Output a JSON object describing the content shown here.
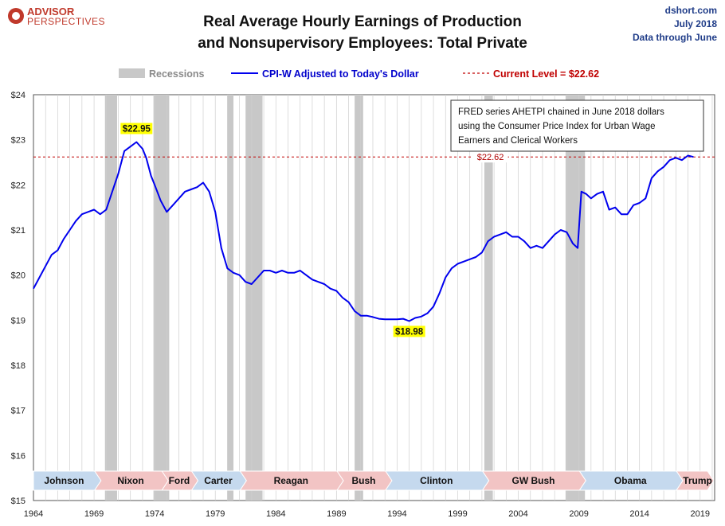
{
  "logo": {
    "line1": "ADVISOR",
    "line2": "PERSPECTIVES"
  },
  "header": {
    "title_line1": "Real Average Hourly Earnings of Production",
    "title_line2": "and Nonsupervisory Employees: Total Private",
    "brand": "dshort.com",
    "date": "July 2018",
    "data_through": "Data through June"
  },
  "legend": {
    "recessions": "Recessions",
    "series": "CPI-W Adjusted to Today's Dollar",
    "current": "Current Level = $22.62"
  },
  "note": {
    "line1": "FRED series AHETPI chained in June 2018 dollars",
    "line2": "using the Consumer Price Index for Urban Wage",
    "line3": "Earners and Clerical Workers"
  },
  "colors": {
    "series": "#0000ee",
    "recession": "#c8c8c8",
    "current_line": "#c00000",
    "annotation_bg": "#ffff00",
    "pres_republican": "#f2c4c4",
    "pres_democrat": "#c5d9ee"
  },
  "chart_data": {
    "type": "line",
    "title": "Real Average Hourly Earnings of Production and Nonsupervisory Employees: Total Private",
    "xlim": [
      1964,
      2020.2
    ],
    "ylim": [
      15,
      24
    ],
    "x_ticks": [
      "1964",
      "1969",
      "1974",
      "1979",
      "1984",
      "1989",
      "1994",
      "1999",
      "2004",
      "2009",
      "2014",
      "2019"
    ],
    "y_ticks": [
      "$15",
      "$16",
      "$17",
      "$18",
      "$19",
      "$20",
      "$21",
      "$22",
      "$23",
      "$24"
    ],
    "grid": "vertical",
    "legend_position": "top-center",
    "series": [
      {
        "name": "CPI-W Adjusted to Today's Dollar",
        "x": [
          1964.0,
          1964.5,
          1965.0,
          1965.5,
          1966.0,
          1966.5,
          1967.0,
          1967.5,
          1968.0,
          1968.5,
          1969.0,
          1969.5,
          1970.0,
          1970.5,
          1971.0,
          1971.5,
          1972.0,
          1972.5,
          1973.0,
          1973.3,
          1973.7,
          1974.0,
          1974.5,
          1975.0,
          1975.5,
          1976.0,
          1976.5,
          1977.0,
          1977.5,
          1978.0,
          1978.5,
          1979.0,
          1979.5,
          1980.0,
          1980.5,
          1981.0,
          1981.5,
          1982.0,
          1982.5,
          1983.0,
          1983.5,
          1984.0,
          1984.5,
          1985.0,
          1985.5,
          1986.0,
          1986.5,
          1987.0,
          1987.5,
          1988.0,
          1988.5,
          1989.0,
          1989.5,
          1990.0,
          1990.5,
          1991.0,
          1991.5,
          1992.0,
          1992.5,
          1993.0,
          1993.5,
          1994.0,
          1994.5,
          1995.0,
          1995.5,
          1996.0,
          1996.5,
          1997.0,
          1997.5,
          1998.0,
          1998.5,
          1999.0,
          1999.5,
          2000.0,
          2000.5,
          2001.0,
          2001.5,
          2002.0,
          2002.5,
          2003.0,
          2003.5,
          2004.0,
          2004.5,
          2005.0,
          2005.5,
          2006.0,
          2006.5,
          2007.0,
          2007.5,
          2008.0,
          2008.5,
          2008.9,
          2009.2,
          2009.6,
          2010.0,
          2010.5,
          2011.0,
          2011.5,
          2012.0,
          2012.5,
          2013.0,
          2013.5,
          2014.0,
          2014.5,
          2015.0,
          2015.5,
          2016.0,
          2016.5,
          2017.0,
          2017.5,
          2018.0,
          2018.45
        ],
        "values": [
          19.7,
          19.95,
          20.2,
          20.45,
          20.55,
          20.8,
          21.0,
          21.2,
          21.35,
          21.4,
          21.45,
          21.35,
          21.45,
          21.85,
          22.25,
          22.75,
          22.85,
          22.95,
          22.8,
          22.6,
          22.2,
          22.0,
          21.65,
          21.4,
          21.55,
          21.7,
          21.85,
          21.9,
          21.95,
          22.05,
          21.85,
          21.4,
          20.6,
          20.15,
          20.05,
          20.0,
          19.85,
          19.8,
          19.95,
          20.1,
          20.1,
          20.05,
          20.1,
          20.05,
          20.05,
          20.1,
          20.0,
          19.9,
          19.85,
          19.8,
          19.7,
          19.65,
          19.5,
          19.4,
          19.2,
          19.1,
          19.1,
          19.07,
          19.03,
          19.02,
          19.02,
          19.02,
          19.03,
          18.98,
          19.05,
          19.08,
          19.15,
          19.3,
          19.6,
          19.95,
          20.15,
          20.25,
          20.3,
          20.35,
          20.4,
          20.5,
          20.75,
          20.85,
          20.9,
          20.95,
          20.85,
          20.85,
          20.75,
          20.6,
          20.65,
          20.6,
          20.75,
          20.9,
          21.0,
          20.95,
          20.7,
          20.6,
          21.85,
          21.8,
          21.7,
          21.8,
          21.85,
          21.45,
          21.5,
          21.35,
          21.35,
          21.55,
          21.6,
          21.7,
          22.15,
          22.3,
          22.4,
          22.55,
          22.6,
          22.55,
          22.65,
          22.62
        ]
      }
    ],
    "recessions": [
      [
        1969.9,
        1970.9
      ],
      [
        1973.9,
        1975.2
      ],
      [
        1980.0,
        1980.5
      ],
      [
        1981.5,
        1982.9
      ],
      [
        1990.5,
        1991.2
      ],
      [
        2001.2,
        2001.9
      ],
      [
        2007.9,
        2009.5
      ]
    ],
    "current_level": 22.62,
    "current_label": "$22.62",
    "annotations": [
      {
        "label": "$22.95",
        "x": 1972.5,
        "y": 22.95,
        "pos": "above"
      },
      {
        "label": "$18.98",
        "x": 1995.0,
        "y": 18.98,
        "pos": "below"
      }
    ],
    "presidents": [
      {
        "name": "Johnson",
        "start": 1964.0,
        "end": 1969.05,
        "party": "D"
      },
      {
        "name": "Nixon",
        "start": 1969.05,
        "end": 1974.6,
        "party": "R"
      },
      {
        "name": "Ford",
        "start": 1974.6,
        "end": 1977.05,
        "party": "R"
      },
      {
        "name": "Carter",
        "start": 1977.05,
        "end": 1981.05,
        "party": "D"
      },
      {
        "name": "Reagan",
        "start": 1981.05,
        "end": 1989.05,
        "party": "R"
      },
      {
        "name": "Bush",
        "start": 1989.05,
        "end": 1993.05,
        "party": "R"
      },
      {
        "name": "Clinton",
        "start": 1993.05,
        "end": 2001.05,
        "party": "D"
      },
      {
        "name": "GW Bush",
        "start": 2001.05,
        "end": 2009.05,
        "party": "R"
      },
      {
        "name": "Obama",
        "start": 2009.05,
        "end": 2017.05,
        "party": "D"
      },
      {
        "name": "Trump",
        "start": 2017.05,
        "end": 2020.2,
        "party": "R"
      }
    ]
  }
}
